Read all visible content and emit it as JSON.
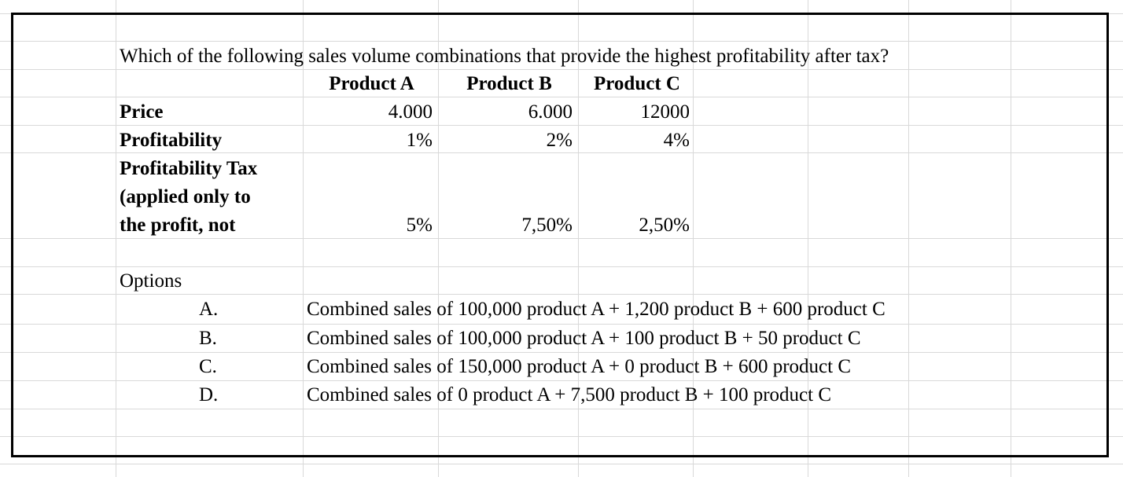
{
  "question": "Which of the following sales volume combinations that provide the highest profitability after tax?",
  "table": {
    "headers": [
      "Product A",
      "Product B",
      "Product C"
    ],
    "rows": [
      {
        "label": "Price",
        "values": [
          "4.000",
          "6.000",
          "12000"
        ]
      },
      {
        "label": "Profitability",
        "values": [
          "1%",
          "2%",
          "4%"
        ]
      },
      {
        "label_lines": [
          "Profitability Tax",
          "(applied only to",
          "the profit, not"
        ],
        "values": [
          "5%",
          "7,50%",
          "2,50%"
        ]
      }
    ]
  },
  "options": {
    "title": "Options",
    "items": [
      {
        "letter": "A.",
        "text": "Combined sales of 100,000 product A + 1,200 product B + 600 product C"
      },
      {
        "letter": "B.",
        "text": "Combined sales of 100,000 product A + 100 product B + 50 product C"
      },
      {
        "letter": "C.",
        "text": "Combined sales of 150,000 product A + 0 product B + 600 product C"
      },
      {
        "letter": "D.",
        "text": "Combined sales of 0 product A + 7,500 product B + 100 product C"
      }
    ]
  }
}
